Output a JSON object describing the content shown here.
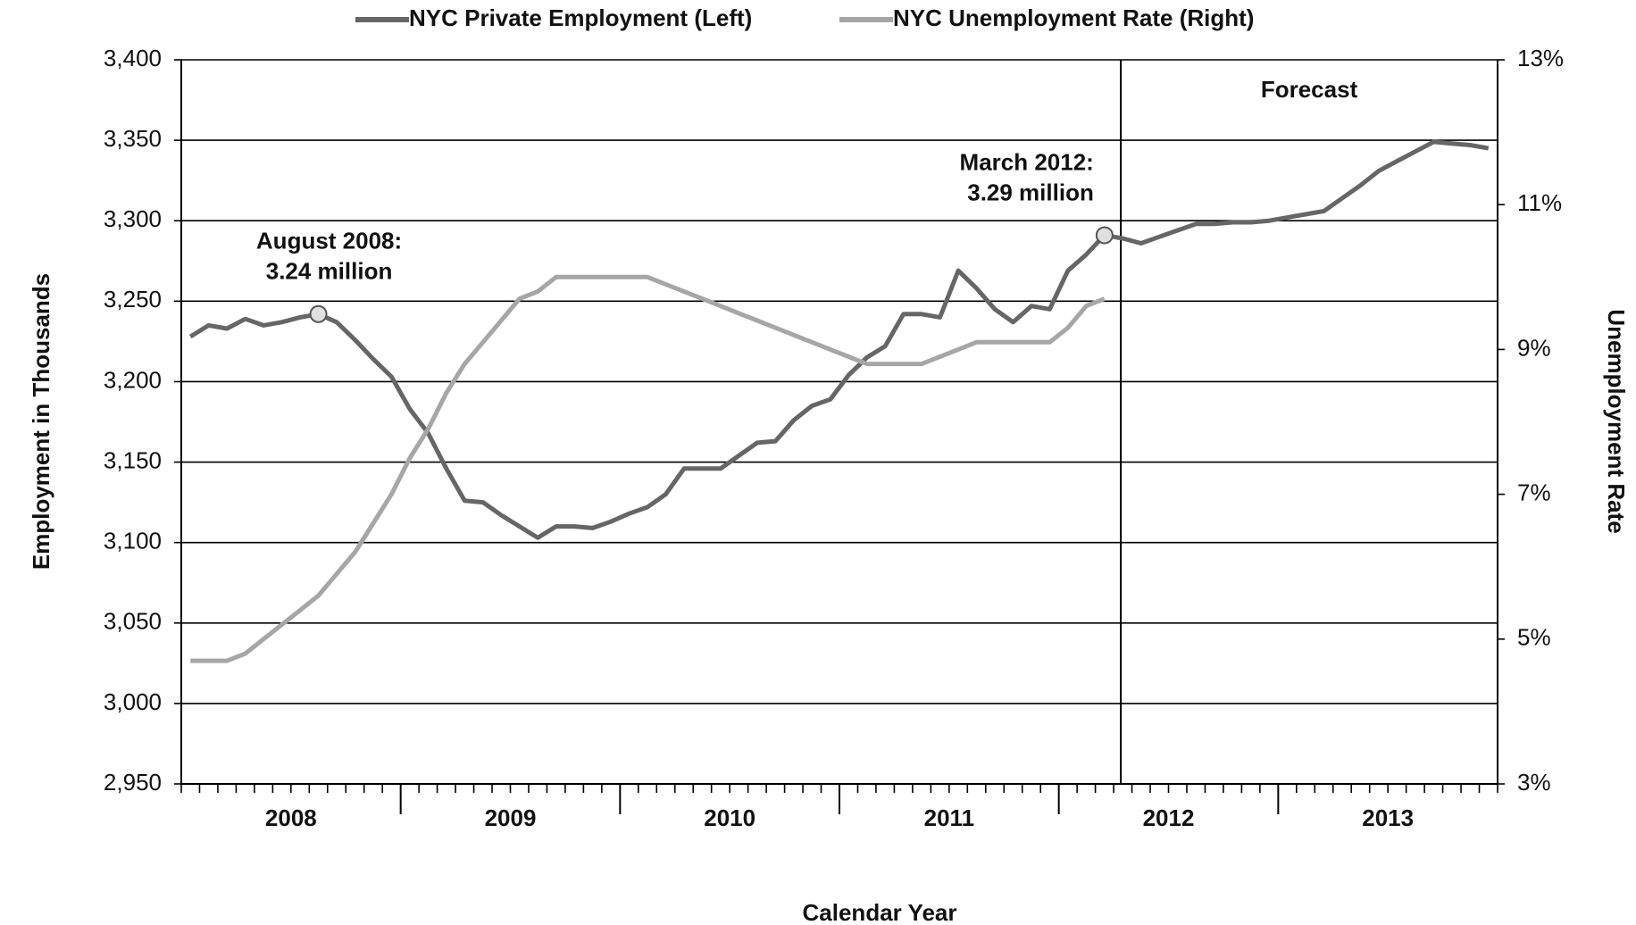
{
  "chart_data": {
    "type": "line",
    "x_label": "Calendar Year",
    "y_label": "Employment in Thousands",
    "y2_label": "Unemployment Rate",
    "categories": [
      null,
      null,
      null,
      null,
      null,
      "2008",
      null,
      null,
      null,
      null,
      null,
      null,
      null,
      null,
      null,
      null,
      null,
      "2009",
      null,
      null,
      null,
      null,
      null,
      null,
      null,
      null,
      null,
      null,
      null,
      "2010",
      null,
      null,
      null,
      null,
      null,
      null,
      null,
      null,
      null,
      null,
      null,
      "2011",
      null,
      null,
      null,
      null,
      null,
      null,
      null,
      null,
      null,
      null,
      null,
      "2012",
      null,
      null,
      null,
      null,
      null,
      null,
      null,
      null,
      null,
      null,
      null,
      "2013",
      null,
      null,
      null,
      null,
      null,
      null
    ],
    "series": [
      {
        "name": "NYC Private Employment (Left)",
        "color": "#666666",
        "values": [
          3228,
          3235,
          3233,
          3239,
          3235,
          3237,
          3240,
          3242,
          3237,
          3226,
          3214,
          3203,
          3183,
          3168,
          3146,
          3126,
          3125,
          3117,
          3110,
          3103,
          3110,
          3110,
          3109,
          3113,
          3118,
          3122,
          3130,
          3146,
          3146,
          3146,
          3154,
          3162,
          3163,
          3176,
          3185,
          3189,
          3204,
          3215,
          3222,
          3242,
          3242,
          3240,
          3269,
          3258,
          3245,
          3237,
          3247,
          3245,
          3269,
          3279,
          3291,
          3289,
          3286,
          3290,
          3294,
          3298,
          3298,
          3299,
          3299,
          3300,
          3302,
          3304,
          3306,
          3314,
          3322,
          3331,
          3337,
          3343,
          3349,
          3348,
          3347,
          3345
        ]
      },
      {
        "name": "NYC Unemployment Rate (Right)",
        "color": "#a6a6a6",
        "axis": "y2",
        "values": [
          4.7,
          4.7,
          4.7,
          4.8,
          5.0,
          5.2,
          5.4,
          5.6,
          5.9,
          6.2,
          6.6,
          7.0,
          7.5,
          7.9,
          8.4,
          8.8,
          9.1,
          9.4,
          9.7,
          9.8,
          10.0,
          10.0,
          10.0,
          10.0,
          10.0,
          10.0,
          9.9,
          9.8,
          9.7,
          9.6,
          9.5,
          9.4,
          9.3,
          9.2,
          9.1,
          9.0,
          8.9,
          8.8,
          8.8,
          8.8,
          8.8,
          8.9,
          9.0,
          9.1,
          9.1,
          9.1,
          9.1,
          9.1,
          9.3,
          9.6,
          9.7,
          null,
          null,
          null,
          null,
          null,
          null,
          null,
          null,
          null,
          null,
          null,
          null,
          null,
          null,
          null,
          null,
          null,
          null,
          null,
          null,
          null
        ]
      }
    ],
    "ylim": [
      2950,
      3400
    ],
    "yticks": [
      {
        "value": 2950,
        "label": "2,950"
      },
      {
        "value": 3000,
        "label": "3,000"
      },
      {
        "value": 3050,
        "label": "3,050"
      },
      {
        "value": 3100,
        "label": "3,100"
      },
      {
        "value": 3150,
        "label": "3,150"
      },
      {
        "value": 3200,
        "label": "3,200"
      },
      {
        "value": 3250,
        "label": "3,250"
      },
      {
        "value": 3300,
        "label": "3,300"
      },
      {
        "value": 3350,
        "label": "3,350"
      },
      {
        "value": 3400,
        "label": "3,400"
      }
    ],
    "y2lim": [
      3,
      13
    ],
    "y2ticks": [
      {
        "value": 3,
        "label": "3%"
      },
      {
        "value": 5,
        "label": "5%"
      },
      {
        "value": 7,
        "label": "7%"
      },
      {
        "value": 9,
        "label": "9%"
      },
      {
        "value": 11,
        "label": "11%"
      },
      {
        "value": 13,
        "label": "13%"
      }
    ],
    "grid": true,
    "annotations": [
      {
        "lines": [
          "August 2008:",
          "3.24 million"
        ],
        "series": 0,
        "index": 7
      },
      {
        "lines": [
          "March 2012:",
          "3.29 million"
        ],
        "series": 0,
        "index": 50
      },
      {
        "lines": [
          "Forecast"
        ]
      }
    ]
  }
}
